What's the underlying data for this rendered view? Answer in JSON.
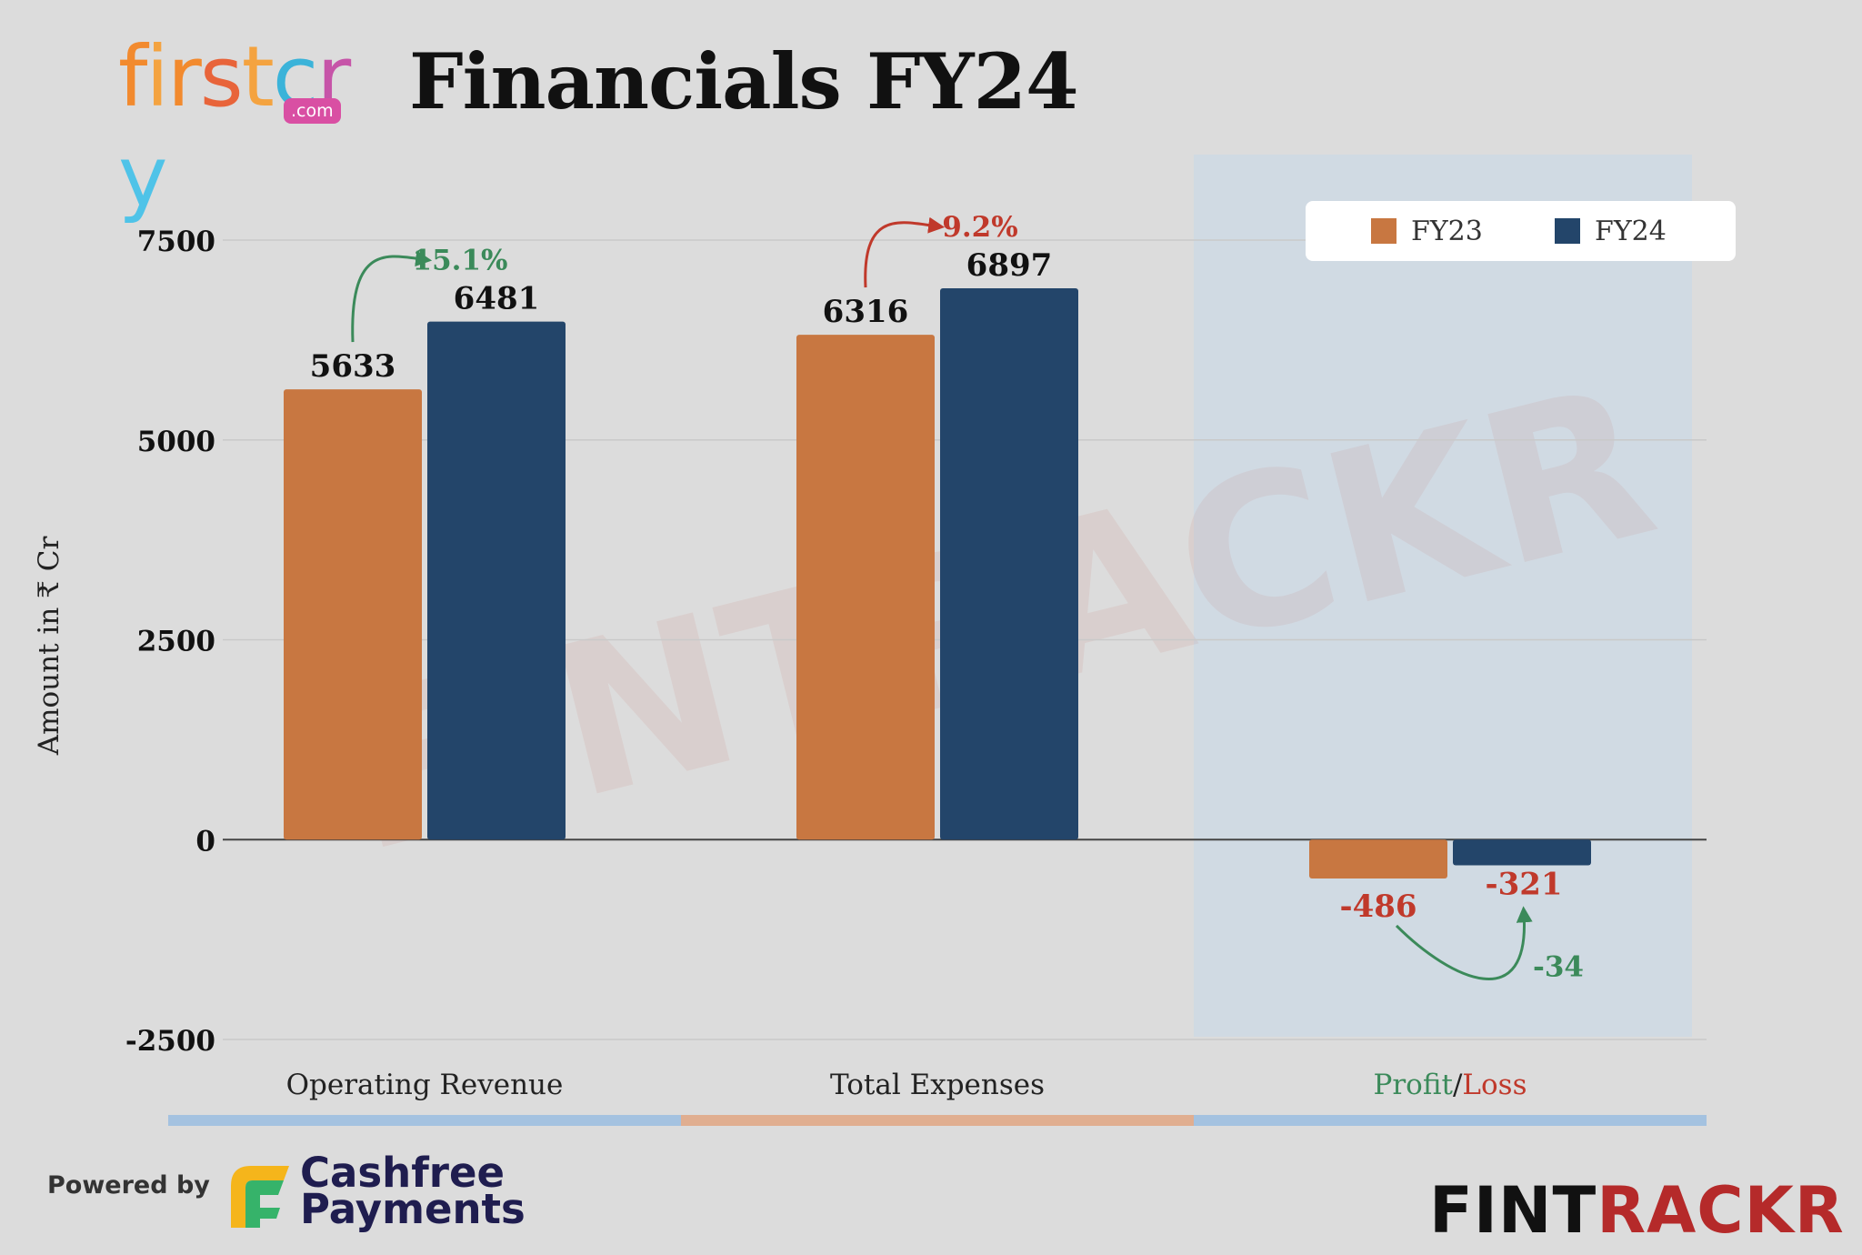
{
  "brand": {
    "logo_word": "firstcry",
    "logo_letters": [
      "f",
      "i",
      "r",
      "s",
      "t",
      "c",
      "r",
      "y"
    ],
    "logo_colors": [
      "#f28a2e",
      "#f4a340",
      "#f28a2e",
      "#e8643a",
      "#f4a340",
      "#3bb3d9",
      "#c654a8",
      "#4fc3e8"
    ],
    "logo_com": ".com"
  },
  "title": "Financials FY24",
  "chart_data": {
    "type": "bar",
    "categories": [
      "Operating Revenue",
      "Total Expenses",
      "Profit/Loss"
    ],
    "category_label_parts": [
      [
        {
          "text": "Operating Revenue",
          "color": "#222222"
        }
      ],
      [
        {
          "text": "Total Expenses",
          "color": "#222222"
        }
      ],
      [
        {
          "text": "Profit",
          "color": "#3b8a5a"
        },
        {
          "text": "/",
          "color": "#222222"
        },
        {
          "text": "Loss",
          "color": "#c0392b"
        }
      ]
    ],
    "series": [
      {
        "name": "FY23",
        "color": "#c87741",
        "values": [
          5633,
          6316,
          -486
        ]
      },
      {
        "name": "FY24",
        "color": "#23456a",
        "values": [
          6481,
          6897,
          -321
        ]
      }
    ],
    "ylabel": "Amount in ₹ Cr",
    "ylim": [
      -2500,
      7500
    ],
    "yticks": [
      -2500,
      0,
      2500,
      5000,
      7500
    ],
    "grid": true,
    "legend": "top-right",
    "value_label_colors": [
      "#111111",
      "#111111",
      "#c0392b"
    ],
    "annotations": [
      {
        "text": "15.1%",
        "category": 0,
        "color": "#3b8a5a"
      },
      {
        "text": "9.2%",
        "category": 1,
        "color": "#c0392b"
      },
      {
        "text": "-34",
        "category": 2,
        "color": "#3b8a5a"
      }
    ],
    "highlight_category": 2,
    "highlight_color": "#c8d8e8",
    "category_bar_colors": [
      "#a4c2e0",
      "#e0ae90",
      "#a4c2e0"
    ]
  },
  "watermark": "FINTRACKR",
  "footer": {
    "powered_by": "Powered by",
    "cashfree_line1": "Cashfree",
    "cashfree_line2": "Payments",
    "fintrackr_part1": "FINT",
    "fintrackr_part2": "RACKR",
    "fintrackr_color1": "#111111",
    "fintrackr_color2": "#b52a2a"
  }
}
